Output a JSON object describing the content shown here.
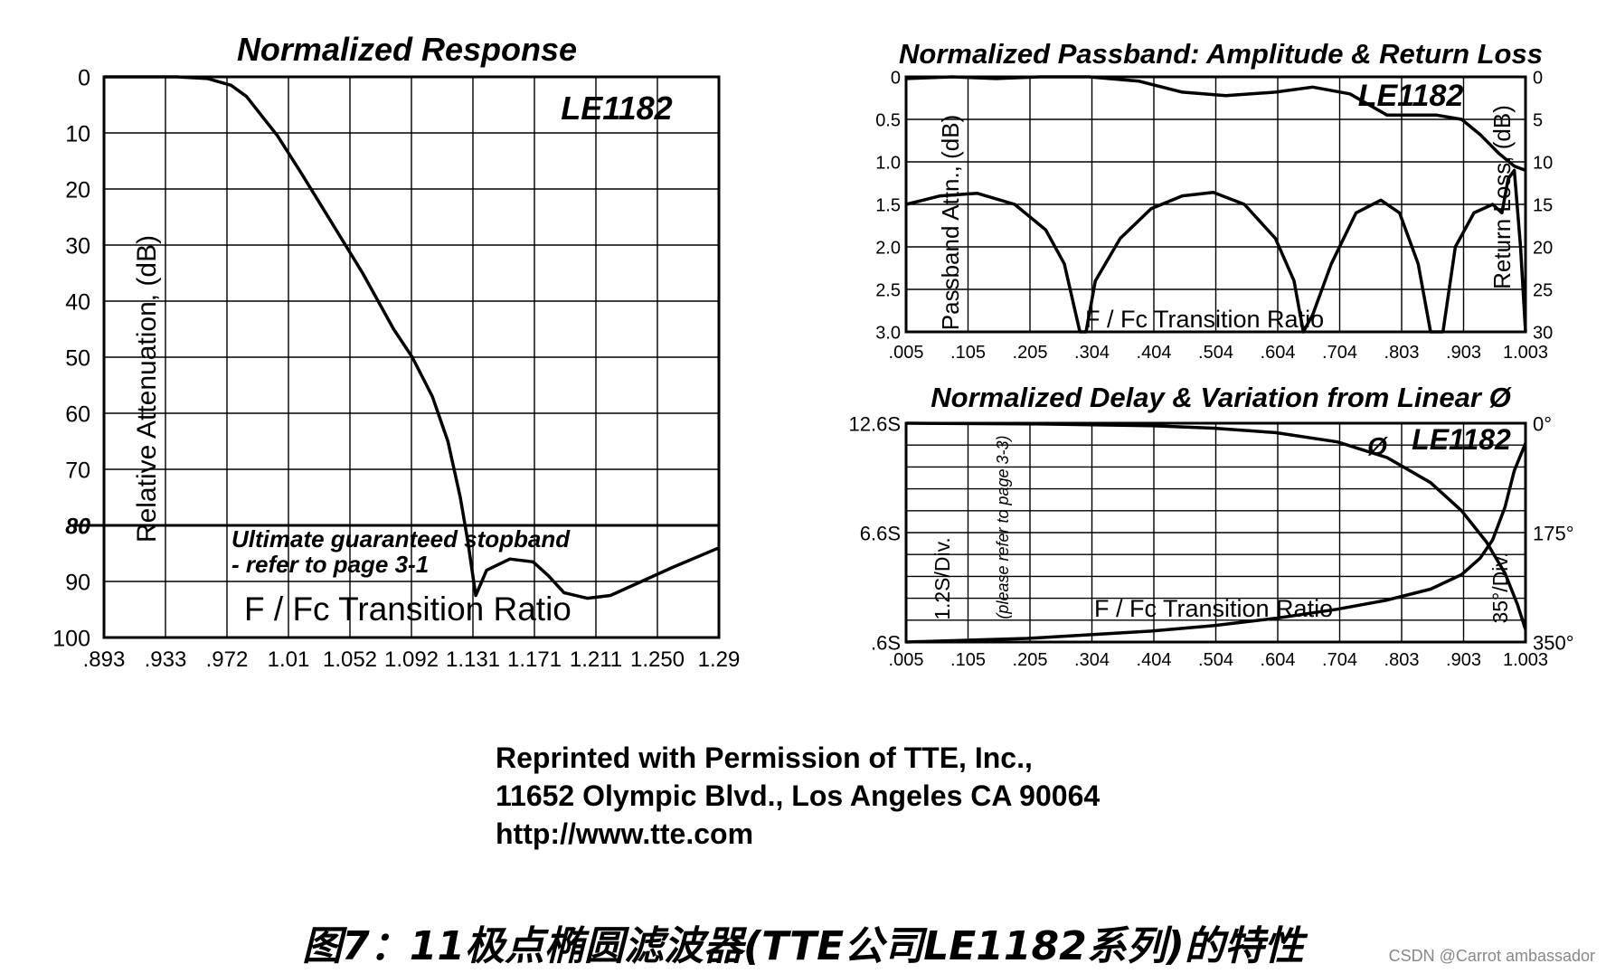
{
  "chart_data": [
    {
      "type": "line",
      "title": "Normalized Response",
      "inset_label": "LE1182",
      "xlabel": "F / Fc Transition Ratio",
      "ylabel": "Relative Attenuation, (dB)",
      "x_ticks": [
        ".893",
        ".933",
        ".972",
        "1.01",
        "1.052",
        "1.092",
        "1.131",
        "1.171",
        "1.211",
        "1.250",
        "1.29"
      ],
      "y_ticks": [
        "0",
        "10",
        "20",
        "30",
        "40",
        "50",
        "60",
        "70",
        "80",
        "90",
        "100"
      ],
      "xlim": [
        0.893,
        1.29
      ],
      "ylim": [
        0,
        100
      ],
      "y_inverted": true,
      "grid": true,
      "threshold": {
        "value": 80,
        "label": "80"
      },
      "annotation_lines": [
        "Ultimate guaranteed stopband",
        "- refer to page 3-1"
      ],
      "series": [
        {
          "points": [
            [
              0.893,
              0
            ],
            [
              0.94,
              0
            ],
            [
              0.96,
              0.3
            ],
            [
              0.975,
              1.5
            ],
            [
              0.985,
              3.5
            ],
            [
              0.995,
              7
            ],
            [
              1.005,
              10.5
            ],
            [
              1.02,
              17
            ],
            [
              1.04,
              26
            ],
            [
              1.06,
              35
            ],
            [
              1.08,
              45
            ],
            [
              1.092,
              50
            ],
            [
              1.105,
              57
            ],
            [
              1.115,
              65
            ],
            [
              1.123,
              75
            ],
            [
              1.128,
              83
            ],
            [
              1.133,
              92.5
            ],
            [
              1.14,
              88
            ],
            [
              1.155,
              86
            ],
            [
              1.17,
              86.5
            ],
            [
              1.18,
              89
            ],
            [
              1.19,
              92
            ],
            [
              1.205,
              93
            ],
            [
              1.22,
              92.5
            ],
            [
              1.24,
              90
            ],
            [
              1.26,
              87.5
            ],
            [
              1.29,
              84
            ]
          ]
        }
      ]
    },
    {
      "type": "line",
      "title": "Normalized Passband: Amplitude & Return Loss",
      "inset_label": "LE1182",
      "xlabel": "F / Fc Transition Ratio",
      "ylabel": "Passband Attn., (dB)",
      "y2label": "Return Loss, (dB)",
      "x_ticks": [
        ".005",
        ".105",
        ".205",
        ".304",
        ".404",
        ".504",
        ".604",
        ".704",
        ".803",
        ".903",
        "1.003"
      ],
      "y_ticks": [
        "0",
        "0.5",
        "1.0",
        "1.5",
        "2.0",
        "2.5",
        "3.0"
      ],
      "y2_ticks": [
        "0",
        "5",
        "10",
        "15",
        "20",
        "25",
        "30"
      ],
      "xlim": [
        0.005,
        1.003
      ],
      "ylim": [
        0,
        3.0
      ],
      "y2lim": [
        0,
        30
      ],
      "y_inverted": true,
      "grid": true,
      "series": [
        {
          "axis": "left",
          "points": [
            [
              0.005,
              0.02
            ],
            [
              0.08,
              0.0
            ],
            [
              0.15,
              0.02
            ],
            [
              0.22,
              0.0
            ],
            [
              0.3,
              -0.02
            ],
            [
              0.38,
              0.05
            ],
            [
              0.45,
              0.18
            ],
            [
              0.52,
              0.22
            ],
            [
              0.6,
              0.18
            ],
            [
              0.66,
              0.12
            ],
            [
              0.72,
              0.2
            ],
            [
              0.78,
              0.45
            ],
            [
              0.86,
              0.45
            ],
            [
              0.9,
              0.5
            ],
            [
              0.93,
              0.68
            ],
            [
              0.96,
              0.9
            ],
            [
              0.985,
              1.05
            ],
            [
              1.003,
              1.1
            ]
          ]
        },
        {
          "axis": "right",
          "points": [
            [
              0.005,
              15
            ],
            [
              0.06,
              14
            ],
            [
              0.12,
              13.7
            ],
            [
              0.18,
              15
            ],
            [
              0.23,
              18
            ],
            [
              0.26,
              22
            ],
            [
              0.285,
              30
            ],
            [
              0.295,
              30
            ],
            [
              0.31,
              24
            ],
            [
              0.35,
              19
            ],
            [
              0.4,
              15.5
            ],
            [
              0.45,
              14
            ],
            [
              0.5,
              13.6
            ],
            [
              0.55,
              15
            ],
            [
              0.6,
              19
            ],
            [
              0.63,
              24
            ],
            [
              0.645,
              30
            ],
            [
              0.66,
              28
            ],
            [
              0.69,
              22
            ],
            [
              0.73,
              16
            ],
            [
              0.77,
              14.5
            ],
            [
              0.8,
              16
            ],
            [
              0.83,
              22
            ],
            [
              0.85,
              30
            ],
            [
              0.87,
              30
            ],
            [
              0.89,
              20
            ],
            [
              0.92,
              16
            ],
            [
              0.95,
              15
            ],
            [
              0.965,
              16
            ],
            [
              0.975,
              12
            ],
            [
              0.985,
              11
            ],
            [
              0.995,
              20
            ],
            [
              1.003,
              30
            ]
          ]
        }
      ]
    },
    {
      "type": "line",
      "title": "Normalized Delay & Variation from Linear Ø",
      "inset_label": "LE1182",
      "phase_series_label": "Ø",
      "xlabel": "F / Fc Transition Ratio",
      "ylabel": "1.2S/Div.",
      "y2label": "35°/Div.",
      "note": "(please refer to page 3-3)",
      "x_ticks": [
        ".005",
        ".105",
        ".205",
        ".304",
        ".404",
        ".504",
        ".604",
        ".704",
        ".803",
        ".903",
        "1.003"
      ],
      "y_ticks": [
        "12.6S",
        "6.6S",
        ".6S"
      ],
      "y2_ticks": [
        "0°",
        "175°",
        "350°"
      ],
      "xlim": [
        0.005,
        1.003
      ],
      "ylim": [
        0.6,
        12.6
      ],
      "y2lim": [
        0,
        350
      ],
      "grid": true,
      "series": [
        {
          "name": "Ø",
          "axis": "right",
          "points": [
            [
              0.005,
              0
            ],
            [
              0.2,
              1
            ],
            [
              0.4,
              4
            ],
            [
              0.5,
              8
            ],
            [
              0.6,
              15
            ],
            [
              0.7,
              30
            ],
            [
              0.78,
              55
            ],
            [
              0.85,
              95
            ],
            [
              0.9,
              140
            ],
            [
              0.94,
              190
            ],
            [
              0.97,
              240
            ],
            [
              0.99,
              290
            ],
            [
              1.003,
              330
            ]
          ]
        },
        {
          "axis": "left",
          "points": [
            [
              0.005,
              0.6
            ],
            [
              0.2,
              0.8
            ],
            [
              0.4,
              1.2
            ],
            [
              0.5,
              1.5
            ],
            [
              0.6,
              1.9
            ],
            [
              0.7,
              2.4
            ],
            [
              0.78,
              2.9
            ],
            [
              0.85,
              3.5
            ],
            [
              0.9,
              4.3
            ],
            [
              0.93,
              5.2
            ],
            [
              0.95,
              6.2
            ],
            [
              0.97,
              8
            ],
            [
              0.985,
              10
            ],
            [
              1.003,
              11.5
            ]
          ]
        }
      ]
    }
  ],
  "credit": {
    "line1": "Reprinted with Permission of TTE, Inc.,",
    "line2": "11652 Olympic Blvd., Los Angeles CA 90064",
    "line3": "http://www.tte.com"
  },
  "caption": "图7：11极点椭圆滤波器(TTE公司LE1182系列)的特性",
  "watermark": "CSDN @Carrot ambassador"
}
